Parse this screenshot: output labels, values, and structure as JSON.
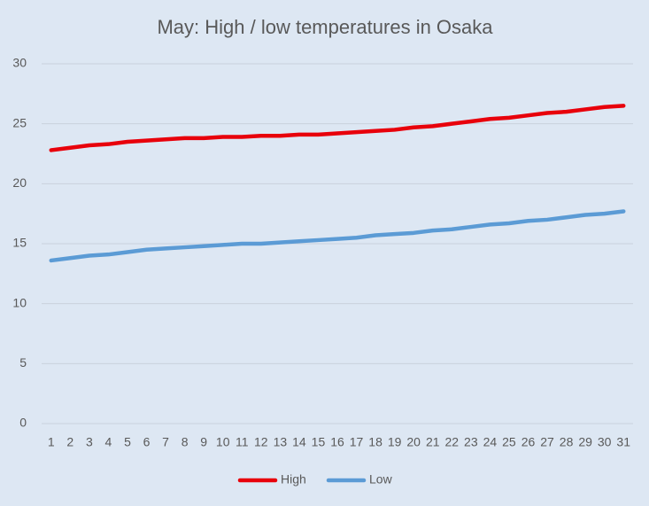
{
  "chart_data": {
    "type": "line",
    "title": "May: High / low temperatures in Osaka",
    "categories": [
      "1",
      "2",
      "3",
      "4",
      "5",
      "6",
      "7",
      "8",
      "9",
      "10",
      "11",
      "12",
      "13",
      "14",
      "15",
      "16",
      "17",
      "18",
      "19",
      "20",
      "21",
      "22",
      "23",
      "24",
      "25",
      "26",
      "27",
      "28",
      "29",
      "30",
      "31"
    ],
    "series": [
      {
        "name": "High",
        "color": "#e8000b",
        "values": [
          22.8,
          23.0,
          23.2,
          23.3,
          23.5,
          23.6,
          23.7,
          23.8,
          23.8,
          23.9,
          23.9,
          24.0,
          24.0,
          24.1,
          24.1,
          24.2,
          24.3,
          24.4,
          24.5,
          24.7,
          24.8,
          25.0,
          25.2,
          25.4,
          25.5,
          25.7,
          25.9,
          26.0,
          26.2,
          26.4,
          26.5
        ]
      },
      {
        "name": "Low",
        "color": "#5b9bd5",
        "values": [
          13.6,
          13.8,
          14.0,
          14.1,
          14.3,
          14.5,
          14.6,
          14.7,
          14.8,
          14.9,
          15.0,
          15.0,
          15.1,
          15.2,
          15.3,
          15.4,
          15.5,
          15.7,
          15.8,
          15.9,
          16.1,
          16.2,
          16.4,
          16.6,
          16.7,
          16.9,
          17.0,
          17.2,
          17.4,
          17.5,
          17.7
        ]
      }
    ],
    "ylim": [
      0,
      30
    ],
    "yticks": [
      0,
      5,
      10,
      15,
      20,
      25,
      30
    ],
    "grid": true,
    "legend": "bottom"
  }
}
